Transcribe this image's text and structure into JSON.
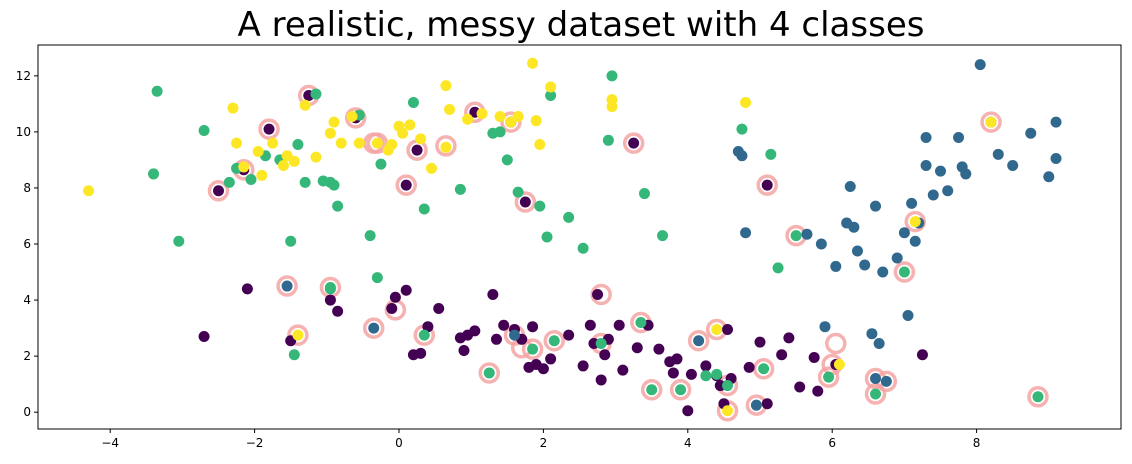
{
  "chart_data": {
    "type": "scatter",
    "title": "A realistic, messy dataset with 4 classes",
    "xlabel": "",
    "ylabel": "",
    "xlim": [
      -5,
      10
    ],
    "ylim": [
      -0.6,
      13.1
    ],
    "xticks": [
      -4,
      -2,
      0,
      2,
      4,
      6,
      8
    ],
    "yticks": [
      0,
      2,
      4,
      6,
      8,
      10,
      12
    ],
    "grid": false,
    "legend": "none",
    "class_colors": [
      "#440154",
      "#31688e",
      "#35b779",
      "#fde725"
    ],
    "highlight_color": "#f4a3a3",
    "series": [
      {
        "class_index": 0,
        "color": "#440154",
        "x": [
          -2.5,
          -2.15,
          -1.8,
          -1.25,
          -0.6,
          0.1,
          0.25,
          1.05,
          1.55,
          1.75,
          3.25,
          5.1,
          -2.7,
          -2.1,
          -1.5,
          -0.95,
          -0.85,
          -0.1,
          -0.05,
          0.1,
          0.2,
          0.3,
          0.4,
          0.55,
          0.85,
          0.9,
          0.95,
          1.05,
          1.3,
          1.35,
          1.45,
          1.6,
          1.7,
          1.8,
          1.85,
          1.9,
          2.0,
          2.1,
          2.35,
          2.55,
          2.65,
          2.7,
          2.75,
          2.8,
          2.85,
          2.9,
          3.05,
          3.1,
          3.3,
          3.45,
          3.6,
          3.75,
          3.8,
          3.85,
          4.0,
          4.05,
          4.25,
          4.4,
          4.45,
          4.5,
          4.55,
          4.6,
          4.85,
          5.0,
          5.1,
          5.3,
          5.4,
          5.55,
          5.75,
          5.8,
          6.05,
          7.25
        ],
        "y": [
          7.9,
          8.65,
          10.1,
          11.3,
          10.5,
          8.1,
          9.35,
          10.7,
          10.35,
          7.5,
          9.6,
          8.1,
          2.7,
          4.4,
          2.55,
          4.0,
          3.6,
          3.7,
          4.1,
          4.35,
          2.05,
          2.1,
          3.05,
          3.7,
          2.65,
          2.2,
          2.75,
          2.9,
          4.2,
          2.6,
          3.1,
          2.95,
          2.6,
          1.6,
          3.05,
          1.7,
          1.55,
          1.9,
          2.75,
          1.65,
          3.1,
          2.45,
          4.2,
          1.15,
          2.05,
          2.6,
          3.1,
          1.5,
          2.3,
          3.1,
          2.25,
          1.8,
          1.4,
          1.9,
          0.05,
          1.35,
          1.65,
          1.3,
          0.95,
          0.3,
          2.95,
          1.2,
          1.6,
          2.5,
          0.3,
          2.05,
          2.65,
          0.9,
          1.95,
          0.75,
          1.7,
          2.05
        ]
      },
      {
        "class_index": 1,
        "color": "#31688e",
        "x": [
          -1.55,
          -0.35,
          1.6,
          4.15,
          4.95,
          6.6,
          6.75,
          8.2,
          4.7,
          4.75,
          4.8,
          5.65,
          5.85,
          5.9,
          6.05,
          6.2,
          6.25,
          6.3,
          6.35,
          6.45,
          6.55,
          6.65,
          6.7,
          6.9,
          7.0,
          7.05,
          7.1,
          7.15,
          7.2,
          7.3,
          7.4,
          7.5,
          7.6,
          7.8,
          7.85,
          8.05,
          8.3,
          8.5,
          8.75,
          9.0,
          9.1,
          9.1,
          6.6,
          7.3,
          7.75
        ],
        "y": [
          4.5,
          3.0,
          2.75,
          2.55,
          0.25,
          1.2,
          1.1,
          10.35,
          9.3,
          9.15,
          6.4,
          6.35,
          6.0,
          3.05,
          5.2,
          6.75,
          8.05,
          6.6,
          5.75,
          5.25,
          2.8,
          2.45,
          5.0,
          5.5,
          6.4,
          3.45,
          7.45,
          6.1,
          6.75,
          8.8,
          7.75,
          8.6,
          7.9,
          8.75,
          8.5,
          12.4,
          9.2,
          8.8,
          9.95,
          8.4,
          10.35,
          9.05,
          7.35,
          9.8,
          9.8
        ],
        "note_hidden": ""
      },
      {
        "class_index": 2,
        "color": "#35b779",
        "x": [
          -0.95,
          0.35,
          1.25,
          1.85,
          2.15,
          2.8,
          3.35,
          3.5,
          3.9,
          4.55,
          5.05,
          5.5,
          5.95,
          6.6,
          7.0,
          8.85,
          -3.35,
          -3.05,
          -2.7,
          -2.35,
          -2.25,
          -2.05,
          -1.85,
          -1.65,
          -1.5,
          -1.4,
          -1.3,
          -1.15,
          -1.05,
          -0.95,
          -0.9,
          -0.85,
          -0.55,
          -0.4,
          -0.3,
          -0.25,
          0.2,
          0.35,
          0.85,
          1.3,
          1.4,
          1.5,
          1.65,
          1.95,
          2.05,
          2.1,
          2.35,
          2.55,
          2.9,
          2.95,
          3.4,
          3.65,
          4.25,
          4.4,
          4.75,
          5.15,
          5.25,
          -3.4,
          -1.45,
          -0.95
        ],
        "y": [
          4.45,
          2.75,
          1.4,
          2.25,
          2.55,
          2.45,
          3.2,
          0.8,
          0.8,
          0.95,
          1.55,
          6.3,
          1.25,
          0.65,
          5.0,
          0.55,
          11.45,
          6.1,
          10.05,
          8.2,
          8.7,
          8.3,
          9.15,
          9.0,
          6.1,
          9.55,
          8.2,
          11.35,
          8.25,
          8.2,
          8.1,
          7.35,
          10.6,
          6.3,
          4.8,
          8.85,
          11.05,
          7.25,
          7.95,
          9.95,
          10.0,
          9.0,
          7.85,
          7.35,
          6.25,
          11.3,
          6.95,
          5.85,
          9.7,
          12.0,
          7.8,
          6.3,
          1.3,
          1.35,
          10.1,
          9.2,
          5.15,
          8.5,
          2.05,
          4.4
        ],
        "note_hidden": ""
      },
      {
        "class_index": 3,
        "color": "#fde725",
        "x": [
          -4.3,
          -2.3,
          -2.25,
          -2.15,
          -1.95,
          -1.9,
          -1.75,
          -1.6,
          -1.55,
          -1.45,
          -1.3,
          -1.15,
          -0.95,
          -0.9,
          -0.8,
          -0.65,
          -0.55,
          -0.3,
          -0.15,
          -0.1,
          0.0,
          0.05,
          0.15,
          0.3,
          0.45,
          0.65,
          0.7,
          0.95,
          1.15,
          1.4,
          1.55,
          1.65,
          1.85,
          1.9,
          1.95,
          2.1,
          2.95,
          2.95,
          4.4,
          4.55,
          4.8,
          6.1,
          7.15,
          8.2,
          -1.4,
          0.65
        ],
        "y": [
          7.9,
          10.85,
          9.6,
          8.75,
          9.3,
          8.45,
          9.6,
          8.8,
          9.15,
          8.95,
          10.95,
          9.1,
          9.95,
          10.35,
          9.6,
          10.55,
          9.6,
          9.6,
          9.35,
          9.55,
          10.2,
          9.95,
          10.25,
          9.75,
          8.7,
          11.65,
          10.8,
          10.45,
          10.65,
          10.55,
          10.35,
          10.55,
          12.45,
          10.4,
          9.55,
          11.6,
          11.15,
          10.9,
          2.95,
          0.05,
          11.05,
          1.7,
          6.8,
          10.35,
          2.75,
          9.45
        ],
        "note_hidden": ""
      }
    ],
    "highlighted": {
      "x": [
        -2.5,
        -2.15,
        -1.8,
        -1.25,
        -0.6,
        0.1,
        0.25,
        1.05,
        1.55,
        1.75,
        3.25,
        5.1,
        -1.55,
        -0.35,
        1.6,
        4.15,
        4.95,
        6.6,
        6.75,
        8.2,
        -0.95,
        0.35,
        1.25,
        1.85,
        2.15,
        2.8,
        3.35,
        3.5,
        3.9,
        4.55,
        5.05,
        5.5,
        5.95,
        6.6,
        7.0,
        8.85,
        -0.35,
        -0.05,
        2.8,
        4.4,
        4.55,
        6.05,
        7.15,
        -1.4,
        -0.3,
        0.65,
        1.7,
        6.0
      ],
      "y": [
        7.9,
        8.65,
        10.1,
        11.3,
        10.5,
        8.1,
        9.35,
        10.7,
        10.35,
        7.5,
        9.6,
        8.1,
        4.5,
        3.0,
        2.75,
        2.55,
        0.25,
        1.2,
        1.1,
        10.35,
        4.45,
        2.75,
        1.4,
        2.25,
        2.55,
        2.45,
        3.2,
        0.8,
        0.8,
        0.95,
        1.55,
        6.3,
        1.25,
        0.65,
        5.0,
        0.55,
        9.6,
        3.65,
        4.2,
        2.95,
        0.05,
        2.45,
        6.8,
        2.75,
        9.6,
        9.5,
        2.3,
        1.7
      ]
    }
  }
}
